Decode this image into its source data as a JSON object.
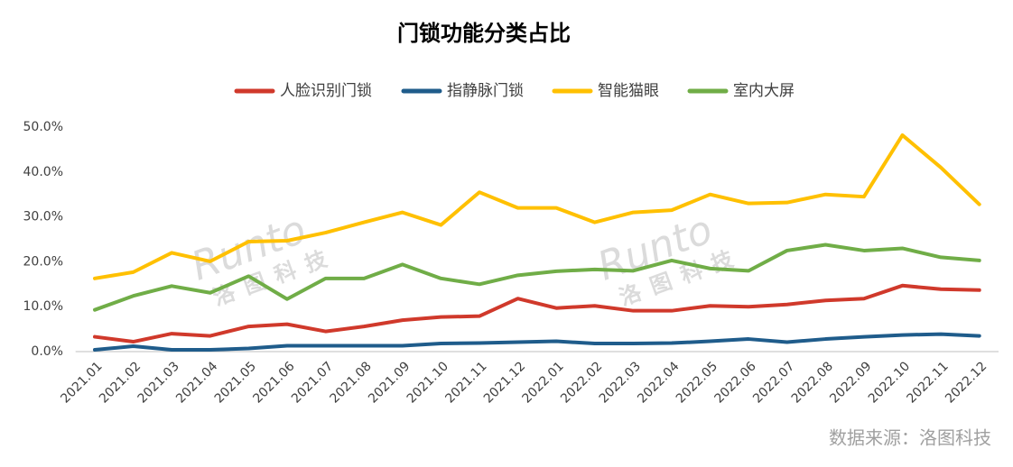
{
  "chart_data": {
    "type": "line",
    "title": "门锁功能分类占比",
    "categories": [
      "2021.01",
      "2021.02",
      "2021.03",
      "2021.04",
      "2021.05",
      "2021.06",
      "2021.07",
      "2021.08",
      "2021.09",
      "2021.10",
      "2021.11",
      "2021.12",
      "2022.01",
      "2022.02",
      "2022.03",
      "2022.04",
      "2022.05",
      "2022.06",
      "2022.07",
      "2022.08",
      "2022.09",
      "2022.10",
      "2022.11",
      "2022.12"
    ],
    "series": [
      {
        "name": "人脸识别门锁",
        "color": "#d0392b",
        "values": [
          3.3,
          2.2,
          4.0,
          3.5,
          5.6,
          6.1,
          4.5,
          5.6,
          7.0,
          7.7,
          7.9,
          11.8,
          9.7,
          10.2,
          9.1,
          9.1,
          10.2,
          10.0,
          10.5,
          11.4,
          11.8,
          14.7,
          13.9,
          13.7
        ]
      },
      {
        "name": "指静脉门锁",
        "color": "#1f5c8b",
        "values": [
          0.4,
          1.2,
          0.4,
          0.4,
          0.7,
          1.3,
          1.3,
          1.3,
          1.3,
          1.8,
          1.9,
          2.1,
          2.3,
          1.8,
          1.8,
          1.9,
          2.3,
          2.8,
          2.1,
          2.8,
          3.3,
          3.7,
          3.9,
          3.5
        ]
      },
      {
        "name": "智能猫眼",
        "color": "#ffc000",
        "values": [
          16.3,
          17.7,
          22.0,
          20.1,
          24.5,
          24.7,
          26.5,
          28.8,
          31.0,
          28.2,
          35.5,
          32.0,
          32.0,
          28.8,
          31.0,
          31.5,
          35.0,
          33.0,
          33.2,
          35.0,
          34.5,
          48.2,
          41.0,
          32.8
        ]
      },
      {
        "name": "室内大屏",
        "color": "#70ad47",
        "values": [
          9.3,
          12.4,
          14.6,
          13.1,
          16.8,
          11.7,
          16.3,
          16.3,
          19.4,
          16.3,
          15.0,
          17.0,
          17.9,
          18.3,
          18.0,
          20.3,
          18.5,
          18.0,
          22.5,
          23.8,
          22.5,
          23.0,
          21.0,
          20.3
        ]
      }
    ],
    "ylim": [
      0,
      50
    ],
    "yticks": [
      {
        "value": 0,
        "label": "0.0%"
      },
      {
        "value": 10,
        "label": "10.0%"
      },
      {
        "value": 20,
        "label": "20.0%"
      },
      {
        "value": 30,
        "label": "30.0%"
      },
      {
        "value": 40,
        "label": "40.0%"
      },
      {
        "value": 50,
        "label": "50.0%"
      }
    ],
    "grid": false,
    "legend": "top",
    "watermark": "Runto",
    "watermark_sub": "洛图科技",
    "source": "数据来源：洛图科技"
  }
}
